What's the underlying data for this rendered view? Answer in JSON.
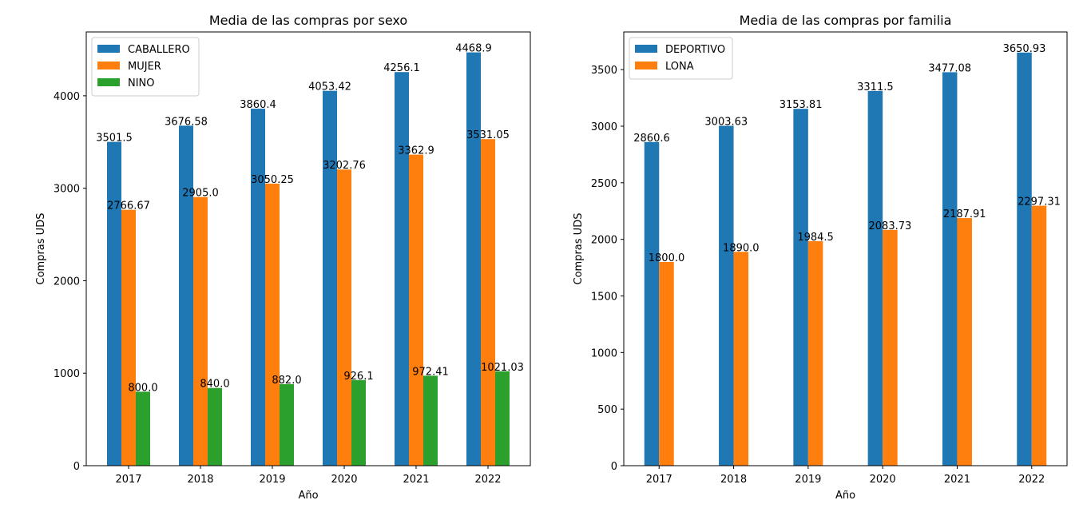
{
  "chart_data": [
    {
      "type": "bar",
      "title": "Media de las compras por sexo",
      "xlabel": "Año",
      "ylabel": "Compras UDS",
      "categories": [
        "2017",
        "2018",
        "2019",
        "2020",
        "2021",
        "2022"
      ],
      "ylim": [
        0,
        4690
      ],
      "yticks": [
        0,
        1000,
        2000,
        3000,
        4000
      ],
      "legend_position": "top-left",
      "grid": false,
      "series": [
        {
          "name": "CABALLERO",
          "color": "#1f77b4",
          "values": [
            3501.5,
            3676.58,
            3860.4,
            4053.42,
            4256.1,
            4468.9
          ],
          "labels": [
            "3501.5",
            "3676.58",
            "3860.4",
            "4053.42",
            "4256.1",
            "4468.9"
          ]
        },
        {
          "name": "MUJER",
          "color": "#ff7f0e",
          "values": [
            2766.67,
            2905.0,
            3050.25,
            3202.76,
            3362.9,
            3531.05
          ],
          "labels": [
            "2766.67",
            "2905.0",
            "3050.25",
            "3202.76",
            "3362.9",
            "3531.05"
          ]
        },
        {
          "name": "NINO",
          "color": "#2ca02c",
          "values": [
            800.0,
            840.0,
            882.0,
            926.1,
            972.41,
            1021.03
          ],
          "labels": [
            "800.0",
            "840.0",
            "882.0",
            "926.1",
            "972.41",
            "1021.03"
          ]
        }
      ]
    },
    {
      "type": "bar",
      "title": "Media de las compras por familia",
      "xlabel": "Año",
      "ylabel": "Compras UDS",
      "categories": [
        "2017",
        "2018",
        "2019",
        "2020",
        "2021",
        "2022"
      ],
      "ylim": [
        0,
        3833
      ],
      "yticks": [
        0,
        500,
        1000,
        1500,
        2000,
        2500,
        3000,
        3500
      ],
      "legend_position": "top-left",
      "grid": false,
      "series": [
        {
          "name": "DEPORTIVO",
          "color": "#1f77b4",
          "values": [
            2860.6,
            3003.63,
            3153.81,
            3311.5,
            3477.08,
            3650.93
          ],
          "labels": [
            "2860.6",
            "3003.63",
            "3153.81",
            "3311.5",
            "3477.08",
            "3650.93"
          ]
        },
        {
          "name": "LONA",
          "color": "#ff7f0e",
          "values": [
            1800.0,
            1890.0,
            1984.5,
            2083.73,
            2187.91,
            2297.31
          ],
          "labels": [
            "1800.0",
            "1890.0",
            "1984.5",
            "2083.73",
            "2187.91",
            "2297.31"
          ]
        }
      ]
    }
  ]
}
